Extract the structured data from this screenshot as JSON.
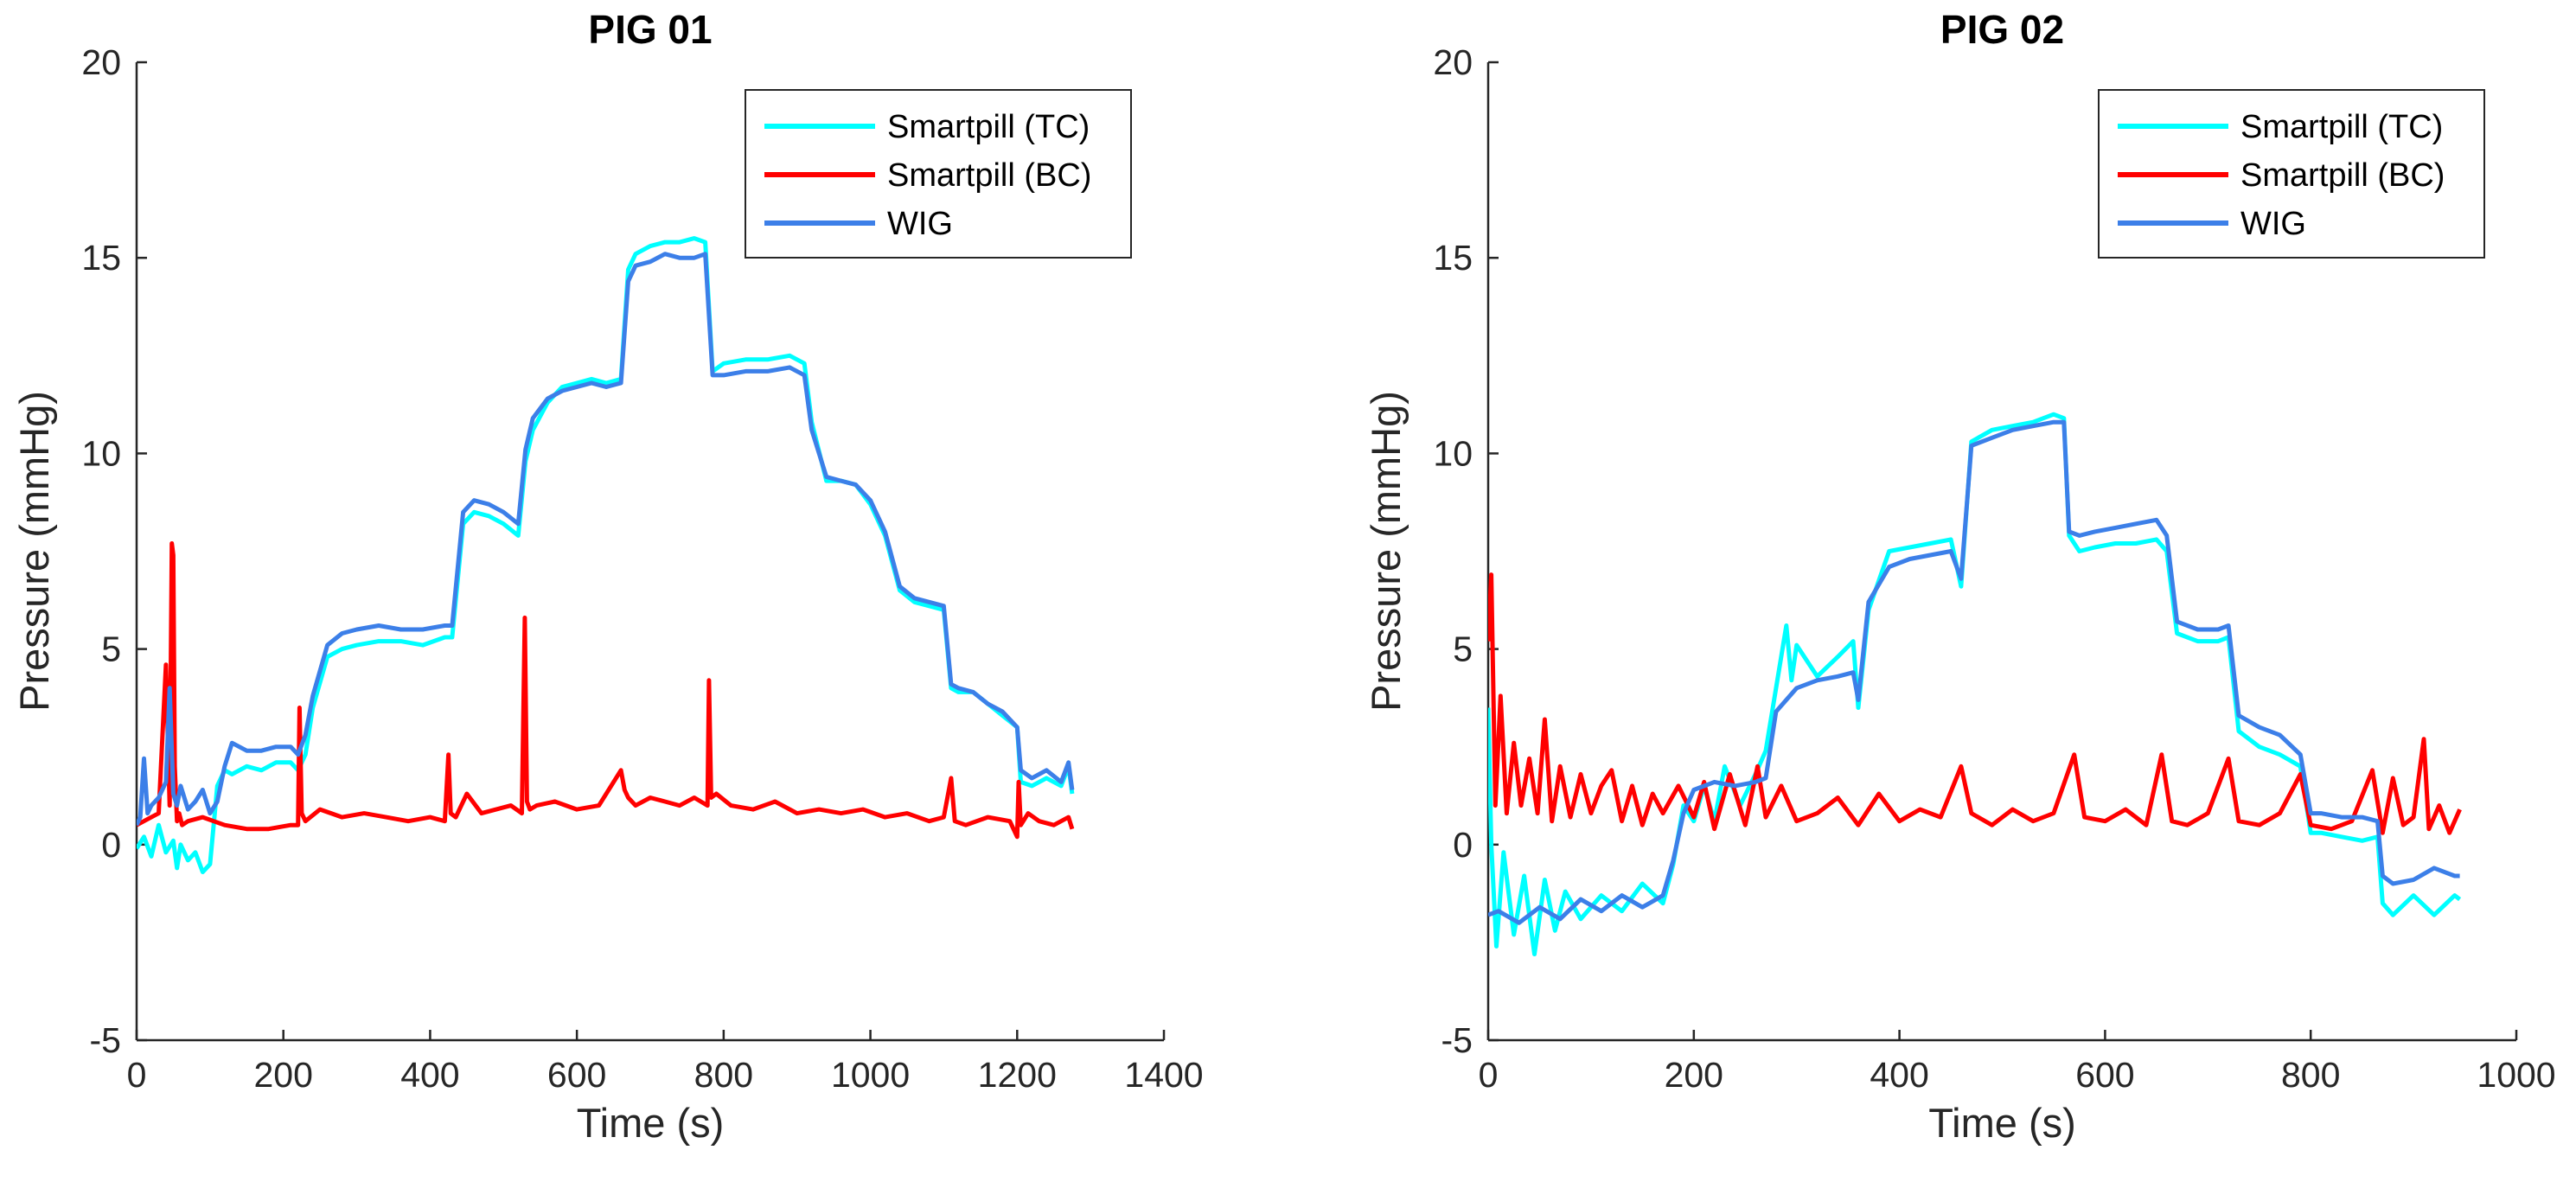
{
  "chart_data": [
    {
      "type": "line",
      "title": "PIG 01",
      "xlabel": "Time (s)",
      "ylabel": "Pressure (mmHg)",
      "xlim": [
        0,
        1400
      ],
      "ylim": [
        -5,
        20
      ],
      "xticks": [
        0,
        200,
        400,
        600,
        800,
        1000,
        1200,
        1400
      ],
      "yticks": [
        -5,
        0,
        5,
        10,
        15,
        20
      ],
      "legend": "top-right",
      "series": [
        {
          "name": "Smartpill (TC)",
          "color": "#00ffff",
          "x": [
            0,
            10,
            20,
            30,
            40,
            50,
            55,
            60,
            70,
            80,
            90,
            100,
            110,
            120,
            130,
            150,
            170,
            190,
            210,
            220,
            230,
            240,
            260,
            280,
            300,
            330,
            360,
            390,
            420,
            430,
            445,
            460,
            480,
            500,
            520,
            530,
            540,
            560,
            580,
            600,
            620,
            640,
            660,
            670,
            680,
            700,
            720,
            740,
            760,
            775,
            785,
            800,
            830,
            860,
            890,
            910,
            920,
            940,
            960,
            980,
            1000,
            1020,
            1040,
            1060,
            1080,
            1100,
            1110,
            1120,
            1140,
            1160,
            1180,
            1200,
            1205,
            1220,
            1240,
            1260,
            1270,
            1275
          ],
          "values": [
            -0.1,
            0.2,
            -0.3,
            0.5,
            -0.2,
            0.1,
            -0.6,
            0.0,
            -0.4,
            -0.2,
            -0.7,
            -0.5,
            1.5,
            1.9,
            1.8,
            2.0,
            1.9,
            2.1,
            2.1,
            1.9,
            2.3,
            3.5,
            4.8,
            5.0,
            5.1,
            5.2,
            5.2,
            5.1,
            5.3,
            5.3,
            8.2,
            8.5,
            8.4,
            8.2,
            7.9,
            9.8,
            10.6,
            11.3,
            11.7,
            11.8,
            11.9,
            11.8,
            11.9,
            14.7,
            15.1,
            15.3,
            15.4,
            15.4,
            15.5,
            15.4,
            12.1,
            12.3,
            12.4,
            12.4,
            12.5,
            12.3,
            10.8,
            9.3,
            9.3,
            9.2,
            8.7,
            7.9,
            6.5,
            6.2,
            6.1,
            6.0,
            4.0,
            3.9,
            3.9,
            3.6,
            3.3,
            3.0,
            1.6,
            1.5,
            1.7,
            1.5,
            2.0,
            1.3
          ]
        },
        {
          "name": "Smartpill (BC)",
          "color": "#ff0000",
          "x": [
            0,
            20,
            30,
            40,
            45,
            48,
            50,
            52,
            55,
            58,
            62,
            70,
            90,
            120,
            150,
            180,
            210,
            220,
            222,
            225,
            230,
            250,
            280,
            310,
            340,
            370,
            400,
            420,
            425,
            428,
            435,
            450,
            470,
            490,
            510,
            525,
            529,
            532,
            536,
            545,
            570,
            600,
            630,
            660,
            665,
            670,
            680,
            700,
            720,
            740,
            760,
            778,
            780,
            783,
            790,
            810,
            840,
            870,
            900,
            930,
            960,
            990,
            1020,
            1050,
            1080,
            1100,
            1110,
            1115,
            1130,
            1160,
            1190,
            1200,
            1202,
            1205,
            1215,
            1230,
            1250,
            1270,
            1275
          ],
          "values": [
            0.5,
            0.7,
            0.8,
            4.6,
            1.0,
            7.7,
            7.4,
            2.0,
            0.6,
            0.8,
            0.5,
            0.6,
            0.7,
            0.5,
            0.4,
            0.4,
            0.5,
            0.5,
            3.5,
            0.8,
            0.6,
            0.9,
            0.7,
            0.8,
            0.7,
            0.6,
            0.7,
            0.6,
            2.3,
            0.8,
            0.7,
            1.3,
            0.8,
            0.9,
            1.0,
            0.8,
            5.8,
            1.1,
            0.9,
            1.0,
            1.1,
            0.9,
            1.0,
            1.9,
            1.4,
            1.2,
            1.0,
            1.2,
            1.1,
            1.0,
            1.2,
            1.0,
            4.2,
            1.2,
            1.3,
            1.0,
            0.9,
            1.1,
            0.8,
            0.9,
            0.8,
            0.9,
            0.7,
            0.8,
            0.6,
            0.7,
            1.7,
            0.6,
            0.5,
            0.7,
            0.6,
            0.2,
            1.6,
            0.5,
            0.8,
            0.6,
            0.5,
            0.7,
            0.4
          ]
        },
        {
          "name": "WIG",
          "color": "#3c7fe8",
          "x": [
            0,
            5,
            10,
            15,
            20,
            30,
            40,
            45,
            50,
            55,
            60,
            70,
            80,
            90,
            100,
            110,
            120,
            130,
            150,
            170,
            190,
            210,
            220,
            230,
            240,
            260,
            280,
            300,
            330,
            360,
            390,
            420,
            430,
            445,
            460,
            480,
            500,
            520,
            530,
            540,
            560,
            580,
            600,
            620,
            640,
            660,
            670,
            680,
            700,
            720,
            740,
            760,
            775,
            785,
            800,
            830,
            860,
            890,
            910,
            920,
            940,
            960,
            980,
            1000,
            1020,
            1040,
            1060,
            1080,
            1100,
            1110,
            1120,
            1140,
            1160,
            1180,
            1200,
            1205,
            1220,
            1240,
            1260,
            1270,
            1275
          ],
          "values": [
            0.5,
            0.7,
            2.2,
            0.8,
            1.0,
            1.2,
            1.6,
            4.0,
            1.3,
            1.0,
            1.5,
            0.9,
            1.1,
            1.4,
            0.8,
            1.1,
            2.0,
            2.6,
            2.4,
            2.4,
            2.5,
            2.5,
            2.3,
            2.8,
            3.8,
            5.1,
            5.4,
            5.5,
            5.6,
            5.5,
            5.5,
            5.6,
            5.6,
            8.5,
            8.8,
            8.7,
            8.5,
            8.2,
            10.1,
            10.9,
            11.4,
            11.6,
            11.7,
            11.8,
            11.7,
            11.8,
            14.4,
            14.8,
            14.9,
            15.1,
            15.0,
            15.0,
            15.1,
            12.0,
            12.0,
            12.1,
            12.1,
            12.2,
            12.0,
            10.6,
            9.4,
            9.3,
            9.2,
            8.8,
            8.0,
            6.6,
            6.3,
            6.2,
            6.1,
            4.1,
            4.0,
            3.9,
            3.6,
            3.4,
            3.0,
            1.9,
            1.7,
            1.9,
            1.6,
            2.1,
            1.4
          ]
        }
      ]
    },
    {
      "type": "line",
      "title": "PIG 02",
      "xlabel": "Time (s)",
      "ylabel": "Pressure (mmHg)",
      "xlim": [
        0,
        1000
      ],
      "ylim": [
        -5,
        20
      ],
      "xticks": [
        0,
        200,
        400,
        600,
        800,
        1000
      ],
      "yticks": [
        -5,
        0,
        5,
        10,
        15,
        20
      ],
      "legend": "top-right",
      "series": [
        {
          "name": "Smartpill (TC)",
          "color": "#00ffff",
          "x": [
            0,
            3,
            8,
            15,
            25,
            35,
            45,
            55,
            65,
            75,
            90,
            110,
            130,
            150,
            170,
            180,
            190,
            200,
            210,
            220,
            230,
            245,
            260,
            270,
            280,
            290,
            295,
            300,
            320,
            340,
            355,
            360,
            370,
            390,
            410,
            430,
            450,
            460,
            470,
            490,
            510,
            530,
            550,
            560,
            565,
            575,
            590,
            610,
            630,
            650,
            660,
            670,
            690,
            710,
            720,
            730,
            750,
            770,
            790,
            800,
            810,
            830,
            850,
            865,
            870,
            880,
            900,
            920,
            940,
            945
          ],
          "values": [
            3.5,
            0.0,
            -2.6,
            -0.2,
            -2.3,
            -0.8,
            -2.8,
            -0.9,
            -2.2,
            -1.2,
            -1.9,
            -1.3,
            -1.7,
            -1.0,
            -1.5,
            -0.5,
            1.0,
            0.6,
            1.5,
            0.6,
            2.0,
            1.0,
            1.8,
            2.4,
            4.0,
            5.6,
            4.2,
            5.1,
            4.3,
            4.8,
            5.2,
            3.5,
            6.0,
            7.5,
            7.6,
            7.7,
            7.8,
            6.6,
            10.3,
            10.6,
            10.7,
            10.8,
            11.0,
            10.9,
            7.9,
            7.5,
            7.6,
            7.7,
            7.7,
            7.8,
            7.5,
            5.4,
            5.2,
            5.2,
            5.3,
            2.9,
            2.5,
            2.3,
            2.0,
            0.3,
            0.3,
            0.2,
            0.1,
            0.2,
            -1.5,
            -1.8,
            -1.3,
            -1.8,
            -1.3,
            -1.4
          ]
        },
        {
          "name": "Smartpill (BC)",
          "color": "#ff0000",
          "x": [
            0,
            3,
            7,
            12,
            18,
            25,
            32,
            40,
            48,
            55,
            62,
            70,
            80,
            90,
            100,
            110,
            120,
            130,
            140,
            150,
            160,
            170,
            185,
            200,
            210,
            220,
            235,
            250,
            262,
            270,
            285,
            300,
            320,
            340,
            360,
            380,
            400,
            420,
            440,
            460,
            470,
            490,
            510,
            530,
            550,
            570,
            580,
            600,
            620,
            640,
            655,
            665,
            680,
            700,
            720,
            730,
            750,
            770,
            790,
            800,
            820,
            840,
            860,
            870,
            880,
            890,
            900,
            910,
            915,
            925,
            935,
            945
          ],
          "values": [
            5.2,
            6.9,
            1.0,
            3.8,
            0.8,
            2.6,
            1.0,
            2.2,
            0.8,
            3.2,
            0.6,
            2.0,
            0.7,
            1.8,
            0.8,
            1.5,
            1.9,
            0.6,
            1.5,
            0.5,
            1.3,
            0.8,
            1.5,
            0.7,
            1.6,
            0.4,
            1.8,
            0.5,
            2.0,
            0.7,
            1.5,
            0.6,
            0.8,
            1.2,
            0.5,
            1.3,
            0.6,
            0.9,
            0.7,
            2.0,
            0.8,
            0.5,
            0.9,
            0.6,
            0.8,
            2.3,
            0.7,
            0.6,
            0.9,
            0.5,
            2.3,
            0.6,
            0.5,
            0.8,
            2.2,
            0.6,
            0.5,
            0.8,
            1.8,
            0.5,
            0.4,
            0.6,
            1.9,
            0.3,
            1.7,
            0.5,
            0.7,
            2.7,
            0.4,
            1.0,
            0.3,
            0.9
          ]
        },
        {
          "name": "WIG",
          "color": "#3c7fe8",
          "x": [
            0,
            10,
            30,
            50,
            70,
            90,
            110,
            130,
            150,
            170,
            180,
            190,
            200,
            220,
            240,
            260,
            270,
            280,
            300,
            320,
            340,
            355,
            360,
            370,
            390,
            410,
            430,
            450,
            460,
            470,
            490,
            510,
            530,
            550,
            560,
            565,
            575,
            590,
            610,
            630,
            650,
            660,
            670,
            690,
            710,
            720,
            730,
            750,
            770,
            790,
            800,
            810,
            830,
            850,
            865,
            870,
            880,
            900,
            920,
            940,
            945
          ],
          "values": [
            -1.8,
            -1.7,
            -2.0,
            -1.6,
            -1.9,
            -1.4,
            -1.7,
            -1.3,
            -1.6,
            -1.3,
            -0.4,
            0.8,
            1.4,
            1.6,
            1.5,
            1.6,
            1.7,
            3.4,
            4.0,
            4.2,
            4.3,
            4.4,
            3.7,
            6.2,
            7.1,
            7.3,
            7.4,
            7.5,
            6.8,
            10.2,
            10.4,
            10.6,
            10.7,
            10.8,
            10.8,
            8.0,
            7.9,
            8.0,
            8.1,
            8.2,
            8.3,
            7.9,
            5.7,
            5.5,
            5.5,
            5.6,
            3.3,
            3.0,
            2.8,
            2.3,
            0.8,
            0.8,
            0.7,
            0.7,
            0.6,
            -0.8,
            -1.0,
            -0.9,
            -0.6,
            -0.8,
            -0.8
          ]
        }
      ]
    }
  ]
}
